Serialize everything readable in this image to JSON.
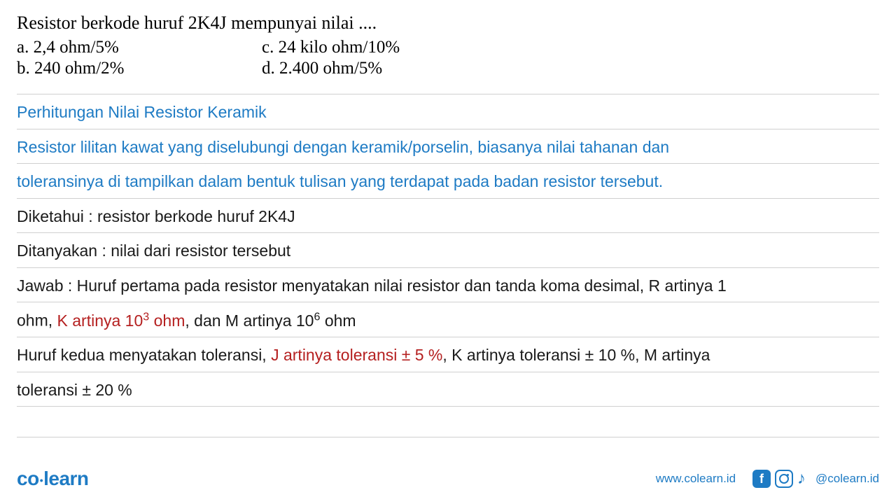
{
  "question": {
    "title": "Resistor berkode huruf 2K4J mempunyai nilai ....",
    "options": {
      "a": "a.  2,4 ohm/5%",
      "b": "b.  240 ohm/2%",
      "c": "c.  24 kilo ohm/10%",
      "d": "d.  2.400 ohm/5%"
    }
  },
  "answer": {
    "heading": "Perhitungan Nilai Resistor Keramik",
    "intro1": "Resistor lilitan kawat yang diselubungi dengan keramik/porselin, biasanya nilai tahanan dan",
    "intro2": "toleransinya di tampilkan dalam bentuk tulisan yang terdapat pada badan resistor tersebut.",
    "diketahui": "Diketahui : resistor berkode huruf 2K4J",
    "ditanyakan": "Ditanyakan : nilai dari resistor tersebut",
    "jawab1_part1": "Jawab : Huruf pertama pada resistor menyatakan nilai resistor dan tanda koma desimal, R artinya 1",
    "jawab2_part1": "ohm, ",
    "jawab2_red": "K artinya 10",
    "jawab2_red_sup": "3",
    "jawab2_red_end": " ohm",
    "jawab2_part2": ", dan M artinya 10",
    "jawab2_sup": "6",
    "jawab2_part3": " ohm",
    "jawab3_part1": "Huruf kedua menyatakan toleransi, ",
    "jawab3_red": "J artinya toleransi ± 5 %",
    "jawab3_part2": ", K artinya toleransi ± 10 %, M artinya",
    "jawab4": "toleransi ± 20 %"
  },
  "footer": {
    "logo_co": "co",
    "logo_learn": "learn",
    "website": "www.colearn.id",
    "handle": "@colearn.id",
    "fb_letter": "f"
  },
  "colors": {
    "blue": "#1e7bc4",
    "red": "#b52020",
    "black": "#1a1a1a",
    "line": "#d0d0d0",
    "background": "#ffffff"
  }
}
